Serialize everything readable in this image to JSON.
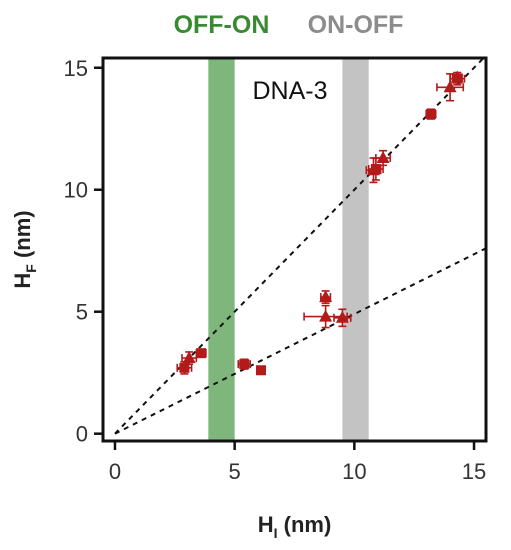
{
  "chart_data": {
    "type": "scatter",
    "xlabel_main": "H",
    "xlabel_sub": "I",
    "xlabel_unit": " (nm)",
    "ylabel_main": "H",
    "ylabel_sub": "F",
    "ylabel_unit": " (nm)",
    "xlim": [
      -0.5,
      15.5
    ],
    "ylim": [
      -0.3,
      15.4
    ],
    "xticks": [
      0,
      5,
      10,
      15
    ],
    "yticks": [
      0,
      5,
      10,
      15
    ],
    "grid": false,
    "annotation": "DNA-3",
    "bands": [
      {
        "label": "OFF-ON",
        "x0": 3.9,
        "x1": 5.0,
        "color": "#7fb67b",
        "label_color": "#3a8a33"
      },
      {
        "label": "ON-OFF",
        "x0": 9.5,
        "x1": 10.6,
        "color": "#c3c3c3",
        "label_color": "#8c8c8c"
      }
    ],
    "fit_lines": [
      {
        "x": [
          0,
          15.5
        ],
        "y": [
          0,
          15.5
        ]
      },
      {
        "x": [
          0,
          15.5
        ],
        "y": [
          0,
          7.6
        ]
      }
    ],
    "series": [
      {
        "marker": "square",
        "color": "#b31b1b",
        "points": [
          {
            "x": 2.9,
            "y": 2.7,
            "xerr": 0.3,
            "yerr": 0.25
          },
          {
            "x": 3.6,
            "y": 3.3,
            "xerr": 0.2,
            "yerr": 0.15
          },
          {
            "x": 5.4,
            "y": 2.85,
            "xerr": 0.25,
            "yerr": 0.2
          },
          {
            "x": 6.1,
            "y": 2.6,
            "xerr": 0.15,
            "yerr": 0.12
          },
          {
            "x": 10.9,
            "y": 10.85,
            "xerr": 0.3,
            "yerr": 0.45
          },
          {
            "x": 13.2,
            "y": 13.1,
            "xerr": 0.2,
            "yerr": 0.2
          },
          {
            "x": 14.3,
            "y": 14.55,
            "xerr": 0.3,
            "yerr": 0.25
          }
        ]
      },
      {
        "marker": "triangle",
        "color": "#b31b1b",
        "points": [
          {
            "x": 3.1,
            "y": 3.1,
            "xerr": 0.3,
            "yerr": 0.25
          },
          {
            "x": 8.8,
            "y": 5.6,
            "xerr": 0.2,
            "yerr": 0.25
          },
          {
            "x": 8.8,
            "y": 4.8,
            "xerr": 0.9,
            "yerr": 0.45
          },
          {
            "x": 9.5,
            "y": 4.75,
            "xerr": 0.35,
            "yerr": 0.35
          },
          {
            "x": 10.8,
            "y": 10.8,
            "xerr": 0.3,
            "yerr": 0.5
          },
          {
            "x": 11.2,
            "y": 11.3,
            "xerr": 0.3,
            "yerr": 0.3
          },
          {
            "x": 14.0,
            "y": 14.2,
            "xerr": 0.55,
            "yerr": 0.55
          },
          {
            "x": 14.3,
            "y": 14.6,
            "xerr": 0.2,
            "yerr": 0.2
          }
        ]
      }
    ]
  }
}
